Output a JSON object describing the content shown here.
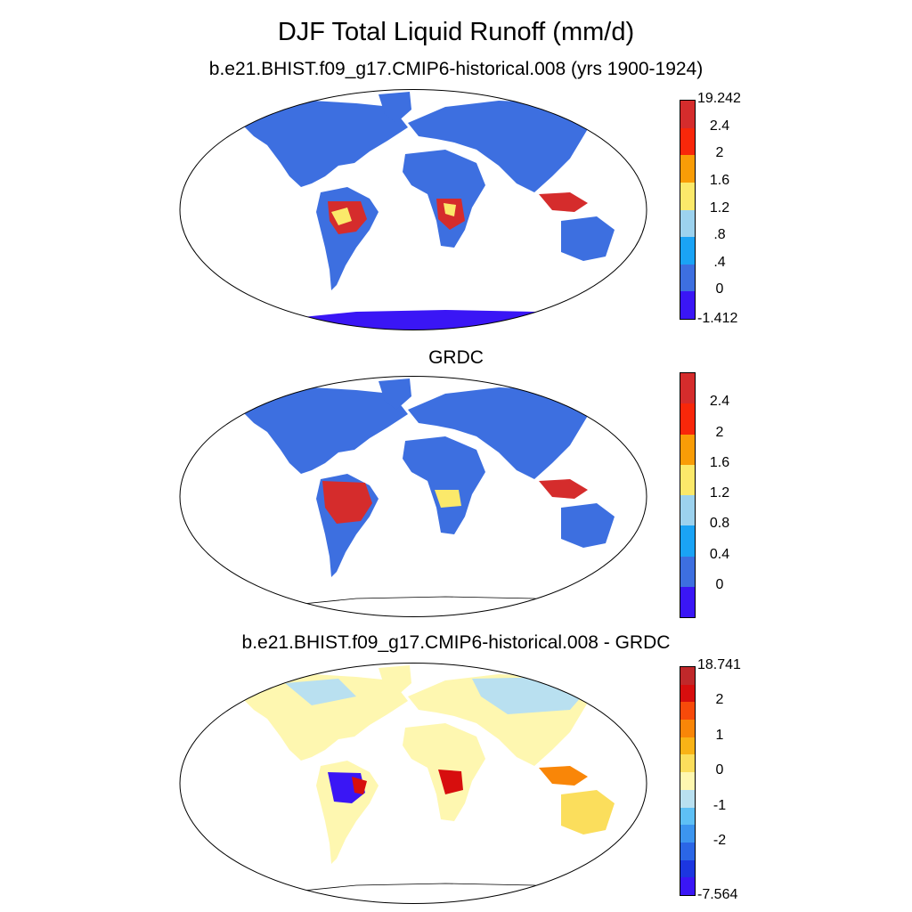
{
  "title": "DJF Total Liquid Runoff (mm/d)",
  "panels": [
    {
      "title": "b.e21.BHIST.f09_g17.CMIP6-historical.008 (yrs 1900-1924)",
      "colorbar": {
        "colors": [
          "#3a16f5",
          "#3d6fe0",
          "#1aa3f5",
          "#9cd2ee",
          "#fbe96a",
          "#f99d07",
          "#f8270a",
          "#d52c2c"
        ],
        "labels": [
          "-1.412",
          "0",
          ".4",
          ".8",
          "1.2",
          "1.6",
          "2",
          "2.4",
          "19.242"
        ]
      }
    },
    {
      "title": "GRDC",
      "colorbar": {
        "colors": [
          "#3a16f5",
          "#3d6fe0",
          "#1aa3f5",
          "#9cd2ee",
          "#fbe96a",
          "#f99d07",
          "#f8270a",
          "#d52c2c"
        ],
        "labels": [
          "0",
          "0.4",
          "0.8",
          "1.2",
          "1.6",
          "2",
          "2.4"
        ]
      }
    },
    {
      "title": "b.e21.BHIST.f09_g17.CMIP6-historical.008 - GRDC",
      "colorbar": {
        "colors": [
          "#3a16f5",
          "#1c36e0",
          "#2b66e6",
          "#3c95ef",
          "#5ec0f5",
          "#b9e0f0",
          "#fef7b0",
          "#fbde5c",
          "#f9b316",
          "#f98608",
          "#f74a0a",
          "#d70e0e",
          "#c0282a"
        ],
        "labels": [
          "-7.564",
          "-2",
          "-1",
          "0",
          "1",
          "2",
          "18.741"
        ]
      }
    }
  ]
}
